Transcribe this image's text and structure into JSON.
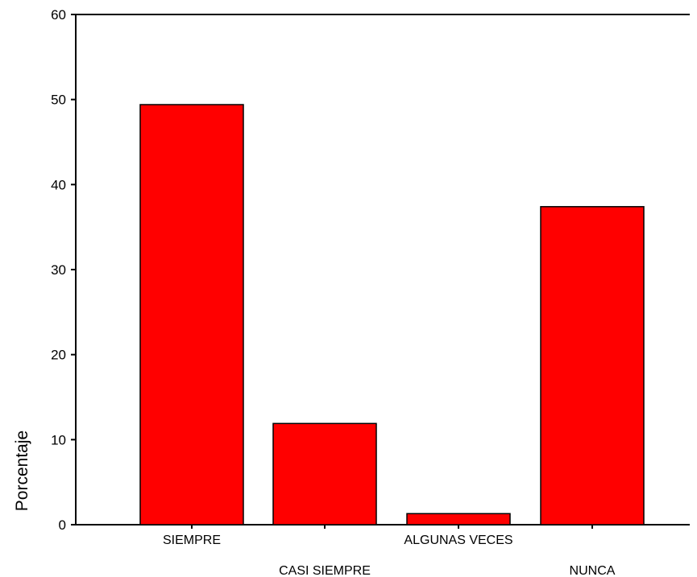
{
  "chart_data": {
    "type": "bar",
    "categories": [
      "SIEMPRE",
      "CASI SIEMPRE",
      "ALGUNAS VECES",
      "NUNCA"
    ],
    "values": [
      49.4,
      11.9,
      1.3,
      37.4
    ],
    "ylabel": "Porcentaje",
    "xlabel": "",
    "ylim": [
      0,
      60
    ],
    "yticks": [
      "0",
      "10",
      "20",
      "30",
      "40",
      "50",
      "60"
    ],
    "bar_color": "#ff0000",
    "grid": false
  }
}
